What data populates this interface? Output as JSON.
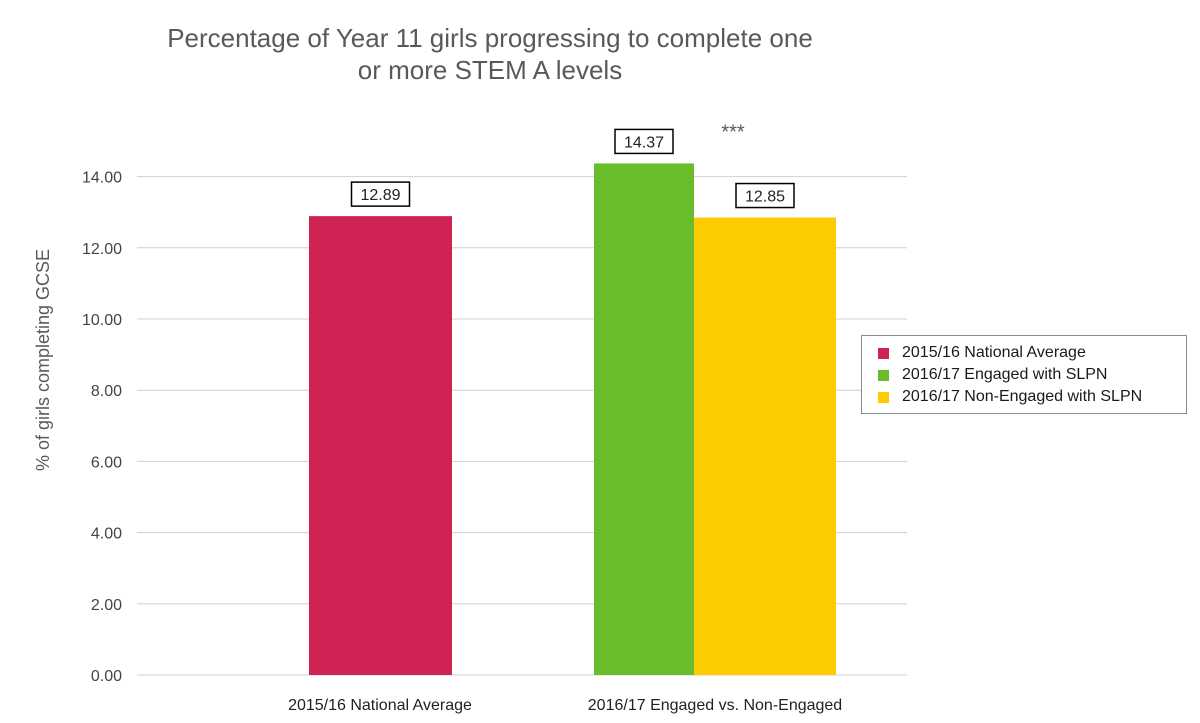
{
  "chart_data": {
    "type": "bar",
    "title_lines": [
      "Percentage of Year 11 girls progressing to complete one",
      "or more STEM A levels"
    ],
    "xlabel": "",
    "ylabel": "% of girls completing GCSE",
    "ylim": [
      0,
      14
    ],
    "yticks": [
      "0.00",
      "2.00",
      "4.00",
      "6.00",
      "8.00",
      "10.00",
      "12.00",
      "14.00"
    ],
    "grid": true,
    "legend_position": "right",
    "categories": [
      "2015/16 National Average",
      "2016/17 Engaged vs. Non-Engaged"
    ],
    "series": [
      {
        "name": "2015/16 National Average",
        "color": "#cf2353",
        "category": 0,
        "value": 12.89,
        "label": "12.89"
      },
      {
        "name": "2016/17 Engaged with SLPN",
        "color": "#6abd2a",
        "category": 1,
        "value": 14.37,
        "label": "14.37"
      },
      {
        "name": "2016/17 Non-Engaged with SLPN",
        "color": "#fccc00",
        "category": 1,
        "value": 12.85,
        "label": "12.85"
      }
    ],
    "annotations": [
      {
        "text": "***",
        "near_series": 1
      }
    ]
  }
}
